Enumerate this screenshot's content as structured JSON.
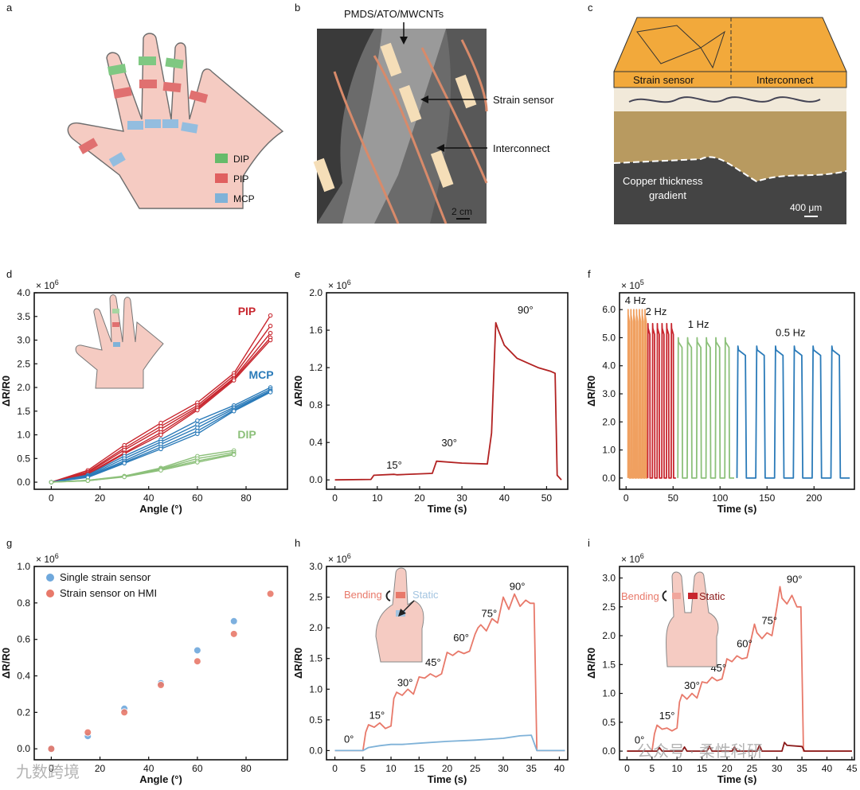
{
  "panel_labels": [
    "a",
    "b",
    "c",
    "d",
    "e",
    "f",
    "g",
    "h",
    "i"
  ],
  "panel_a": {
    "legend": [
      {
        "label": "DIP",
        "color": "#66bb6a"
      },
      {
        "label": "PIP",
        "color": "#e06060"
      },
      {
        "label": "MCP",
        "color": "#7fb2d8"
      }
    ]
  },
  "panel_b": {
    "label_top": "PMDS/ATO/MWCNTs",
    "label_sensor": "Strain sensor",
    "label_interconnect": "Interconnect",
    "scale": "2 cm"
  },
  "panel_c": {
    "label_left": "Strain sensor",
    "label_right": "Interconnect",
    "label_gradient_1": "Copper thickness",
    "label_gradient_2": "gradient",
    "scale": "400 μm"
  },
  "watermark": {
    "left": "九数跨境",
    "right": "公众号 · 柔性科研"
  },
  "chart_data": [
    {
      "id": "d",
      "type": "line",
      "xlabel": "Angle (°)",
      "ylabel": "ΔR/R0",
      "multiplier": "× 10",
      "multiplier_exp": "6",
      "xlim": [
        -7,
        97
      ],
      "ylim": [
        -0.15,
        4.0
      ],
      "xticks": [
        0,
        20,
        40,
        60,
        80
      ],
      "yticks": [
        0.0,
        0.5,
        1.0,
        1.5,
        2.0,
        2.5,
        3.0,
        3.5,
        4.0
      ],
      "ytick_decimals": 1,
      "series": [
        {
          "name": "PIP",
          "color": "#c8262e",
          "x": [
            0,
            15,
            30,
            45,
            60,
            75,
            90
          ],
          "runs": [
            [
              0,
              0.25,
              0.78,
              1.25,
              1.68,
              2.3,
              3.52
            ],
            [
              0,
              0.22,
              0.72,
              1.18,
              1.62,
              2.25,
              3.3
            ],
            [
              0,
              0.2,
              0.68,
              1.12,
              1.58,
              2.2,
              3.15
            ],
            [
              0,
              0.18,
              0.62,
              1.05,
              1.55,
              2.18,
              3.05
            ],
            [
              0,
              0.16,
              0.6,
              1.0,
              1.52,
              2.15,
              3.0
            ]
          ]
        },
        {
          "name": "MCP",
          "color": "#2b7bb9",
          "x": [
            0,
            15,
            30,
            45,
            60,
            75,
            90
          ],
          "runs": [
            [
              0,
              0.15,
              0.55,
              0.9,
              1.3,
              1.62,
              2.0
            ],
            [
              0,
              0.13,
              0.5,
              0.85,
              1.22,
              1.58,
              1.96
            ],
            [
              0,
              0.12,
              0.45,
              0.8,
              1.15,
              1.55,
              1.93
            ],
            [
              0,
              0.11,
              0.42,
              0.74,
              1.08,
              1.52,
              1.92
            ],
            [
              0,
              0.1,
              0.4,
              0.7,
              1.02,
              1.5,
              1.9
            ]
          ]
        },
        {
          "name": "DIP",
          "color": "#8cc07a",
          "x": [
            0,
            15,
            30,
            45,
            60,
            75
          ],
          "runs": [
            [
              0,
              0.04,
              0.13,
              0.3,
              0.55,
              0.67
            ],
            [
              0,
              0.04,
              0.12,
              0.28,
              0.5,
              0.63
            ],
            [
              0,
              0.03,
              0.12,
              0.27,
              0.45,
              0.6
            ],
            [
              0,
              0.03,
              0.11,
              0.25,
              0.42,
              0.58
            ]
          ]
        }
      ]
    },
    {
      "id": "e",
      "type": "line",
      "xlabel": "Time (s)",
      "ylabel": "ΔR/R0",
      "multiplier": "× 10",
      "multiplier_exp": "6",
      "xlim": [
        -2,
        55
      ],
      "ylim": [
        -0.1,
        2.0
      ],
      "xticks": [
        0,
        10,
        20,
        30,
        40,
        50
      ],
      "yticks": [
        0.0,
        0.4,
        0.8,
        1.2,
        1.6,
        2.0
      ],
      "ytick_decimals": 1,
      "series": [
        {
          "color": "#b22222",
          "x": [
            0,
            8.5,
            9.2,
            14,
            14.6,
            23,
            24,
            30,
            36,
            37,
            38,
            38.6,
            40,
            43,
            46,
            48,
            51,
            52,
            52.5,
            53.5
          ],
          "y": [
            0,
            0.005,
            0.05,
            0.06,
            0.055,
            0.07,
            0.2,
            0.18,
            0.17,
            0.5,
            1.68,
            1.6,
            1.44,
            1.3,
            1.24,
            1.2,
            1.16,
            1.14,
            0.05,
            0.0
          ]
        }
      ],
      "annotations": [
        {
          "text": "15°",
          "x": 14,
          "y": 0.12
        },
        {
          "text": "30°",
          "x": 27,
          "y": 0.36
        },
        {
          "text": "90°",
          "x": 45,
          "y": 1.78
        }
      ]
    },
    {
      "id": "f",
      "type": "line",
      "xlabel": "Time (s)",
      "ylabel": "ΔR/R0",
      "multiplier": "× 10",
      "multiplier_exp": "5",
      "xlim": [
        -7,
        243
      ],
      "ylim": [
        -0.4,
        6.6
      ],
      "xticks": [
        0,
        50,
        100,
        150,
        200
      ],
      "yticks": [
        0.0,
        1.0,
        2.0,
        3.0,
        4.0,
        5.0,
        6.0
      ],
      "ytick_decimals": 1,
      "series": [
        {
          "name": "4 Hz",
          "color": "#f0a060",
          "start": 2,
          "count": 7,
          "period": 3.0,
          "high": 6.0
        },
        {
          "name": "2 Hz",
          "color": "#c8262e",
          "start": 23,
          "count": 6,
          "period": 5.0,
          "high": 5.5
        },
        {
          "name": "1 Hz",
          "color": "#8cc07a",
          "start": 55,
          "count": 6,
          "period": 10.0,
          "high": 5.0
        },
        {
          "name": "0.5 Hz",
          "color": "#2b7bb9",
          "start": 118,
          "count": 6,
          "period": 20.0,
          "high": 4.7
        }
      ],
      "annotations": [
        {
          "text": "4 Hz",
          "x": 10,
          "y": 6.2
        },
        {
          "text": "2 Hz",
          "x": 32,
          "y": 5.8
        },
        {
          "text": "1 Hz",
          "x": 77,
          "y": 5.35
        },
        {
          "text": "0.5 Hz",
          "x": 175,
          "y": 5.05
        }
      ]
    },
    {
      "id": "g",
      "type": "scatter",
      "xlabel": "Angle (°)",
      "ylabel": "ΔR/R0",
      "multiplier": "× 10",
      "multiplier_exp": "6",
      "xlim": [
        -7,
        97
      ],
      "ylim": [
        -0.06,
        1.0
      ],
      "xticks": [
        0,
        20,
        40,
        60,
        80
      ],
      "yticks": [
        0.0,
        0.2,
        0.4,
        0.6,
        0.8,
        1.0
      ],
      "ytick_decimals": 1,
      "series": [
        {
          "name": "Single strain sensor",
          "color": "#6fa8dc",
          "x": [
            0,
            15,
            30,
            45,
            60,
            75
          ],
          "y": [
            0.0,
            0.07,
            0.22,
            0.36,
            0.54,
            0.7
          ]
        },
        {
          "name": "Strain sensor on HMI",
          "color": "#e8796a",
          "x": [
            0,
            15,
            30,
            45,
            60,
            75,
            90
          ],
          "y": [
            0.0,
            0.09,
            0.2,
            0.35,
            0.48,
            0.63,
            0.85
          ]
        }
      ]
    },
    {
      "id": "h",
      "type": "line",
      "xlabel": "Time (s)",
      "ylabel": "ΔR/R0",
      "multiplier": "× 10",
      "multiplier_exp": "6",
      "xlim": [
        -1.5,
        41.5
      ],
      "ylim": [
        -0.15,
        3.0
      ],
      "xticks": [
        0,
        5,
        10,
        15,
        20,
        25,
        30,
        35,
        40
      ],
      "yticks": [
        0.0,
        0.5,
        1.0,
        1.5,
        2.0,
        2.5,
        3.0
      ],
      "ytick_decimals": 1,
      "inset_labels": {
        "left": "Bending",
        "right": "Static"
      },
      "series": [
        {
          "name": "Bending",
          "color": "#e8796a",
          "x": [
            0,
            5,
            5.5,
            6,
            7,
            8,
            9,
            10,
            10.5,
            11,
            12,
            13,
            14,
            15,
            16,
            17,
            18,
            19,
            20,
            21,
            22,
            23,
            24,
            25,
            25.5,
            26,
            27,
            28,
            29,
            30,
            31,
            32,
            33,
            34,
            34.8,
            35.5,
            36,
            41
          ],
          "y": [
            0,
            0,
            0.3,
            0.42,
            0.38,
            0.45,
            0.36,
            0.4,
            0.85,
            0.95,
            0.9,
            1.0,
            0.92,
            1.2,
            1.18,
            1.25,
            1.2,
            1.25,
            1.6,
            1.55,
            1.62,
            1.58,
            1.62,
            1.9,
            2.0,
            2.05,
            1.95,
            2.15,
            2.08,
            2.5,
            2.3,
            2.55,
            2.35,
            2.45,
            2.4,
            2.4,
            0,
            0
          ]
        },
        {
          "name": "Static",
          "color": "#7fb2d8",
          "x": [
            0,
            5,
            6,
            8,
            10,
            12,
            15,
            20,
            25,
            30,
            33,
            35,
            36,
            41
          ],
          "y": [
            0,
            0,
            0.05,
            0.08,
            0.1,
            0.1,
            0.12,
            0.15,
            0.17,
            0.2,
            0.24,
            0.25,
            0,
            0
          ]
        }
      ],
      "annotations": [
        {
          "text": "0°",
          "x": 2.5,
          "y": 0.13
        },
        {
          "text": "15°",
          "x": 7.5,
          "y": 0.52
        },
        {
          "text": "30°",
          "x": 12.5,
          "y": 1.05
        },
        {
          "text": "45°",
          "x": 17.5,
          "y": 1.38
        },
        {
          "text": "60°",
          "x": 22.5,
          "y": 1.78
        },
        {
          "text": "75°",
          "x": 27.5,
          "y": 2.18
        },
        {
          "text": "90°",
          "x": 32.5,
          "y": 2.62
        }
      ]
    },
    {
      "id": "i",
      "type": "line",
      "xlabel": "Time (s)",
      "ylabel": "ΔR/R0",
      "multiplier": "× 10",
      "multiplier_exp": "6",
      "xlim": [
        -1.5,
        45.5
      ],
      "ylim": [
        -0.15,
        3.2
      ],
      "xticks": [
        0,
        5,
        10,
        15,
        20,
        25,
        30,
        35,
        40,
        45
      ],
      "yticks": [
        0.0,
        0.5,
        1.0,
        1.5,
        2.0,
        2.5,
        3.0
      ],
      "ytick_decimals": 1,
      "inset_labels": {
        "left": "Bending",
        "right": "Static"
      },
      "series": [
        {
          "name": "Bending",
          "color": "#e8796a",
          "x": [
            0,
            5,
            5.5,
            6,
            7,
            8,
            9,
            10,
            10.5,
            11,
            12,
            13,
            14,
            15,
            16,
            17,
            18,
            19,
            20,
            21,
            22,
            23,
            24,
            25,
            25.5,
            26,
            27,
            28,
            29,
            30,
            30.6,
            31,
            32,
            33,
            34,
            34.8,
            35.3,
            36,
            45
          ],
          "y": [
            0,
            0,
            0.3,
            0.45,
            0.38,
            0.4,
            0.35,
            0.4,
            0.85,
            0.98,
            0.9,
            1.0,
            0.92,
            1.2,
            1.18,
            1.28,
            1.22,
            1.25,
            1.6,
            1.55,
            1.65,
            1.6,
            1.62,
            2.0,
            2.2,
            2.05,
            1.95,
            2.05,
            2.0,
            2.5,
            2.85,
            2.65,
            2.55,
            2.7,
            2.5,
            2.5,
            0,
            0,
            0
          ]
        },
        {
          "name": "Static",
          "color": "#8b1a1a",
          "x": [
            0,
            5,
            6,
            6.5,
            7,
            10,
            11,
            11.5,
            12,
            15,
            16,
            16.5,
            17,
            20,
            21,
            21.5,
            22,
            25,
            26,
            26.5,
            27,
            30,
            31,
            31.5,
            32,
            35,
            35.5,
            36,
            45
          ],
          "y": [
            0,
            0,
            0,
            0.06,
            0,
            0,
            0,
            0.07,
            0,
            0,
            0,
            0.08,
            0,
            0,
            0,
            0.07,
            0,
            0,
            0,
            0.1,
            0,
            0,
            0,
            0.15,
            0.1,
            0.08,
            0,
            0,
            0
          ]
        }
      ],
      "annotations": [
        {
          "text": "0°",
          "x": 2.5,
          "y": 0.13
        },
        {
          "text": "15°",
          "x": 8,
          "y": 0.55
        },
        {
          "text": "30°",
          "x": 13,
          "y": 1.08
        },
        {
          "text": "45°",
          "x": 18.3,
          "y": 1.38
        },
        {
          "text": "60°",
          "x": 23.5,
          "y": 1.8
        },
        {
          "text": "75°",
          "x": 28.5,
          "y": 2.2
        },
        {
          "text": "90°",
          "x": 33.5,
          "y": 2.92
        }
      ]
    }
  ]
}
